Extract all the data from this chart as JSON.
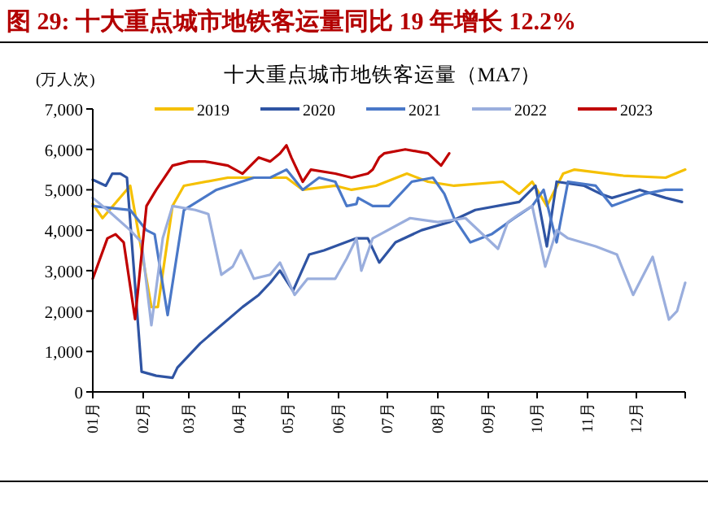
{
  "chart_data": {
    "type": "line",
    "title": "图 29: 十大重点城市地铁客运量同比 19 年增长 12.2%",
    "subtitle": "十大重点城市地铁客运量（MA7）",
    "ylabel": "(万人次)",
    "xlim": [
      "--01-01",
      "--12-31"
    ],
    "xticks": [
      {
        "value": "--01-01",
        "label": "01月"
      },
      {
        "value": "--02-01",
        "label": "02月"
      },
      {
        "value": "--03-01",
        "label": "03月"
      },
      {
        "value": "--04-01",
        "label": "04月"
      },
      {
        "value": "--05-01",
        "label": "05月"
      },
      {
        "value": "--06-01",
        "label": "06月"
      },
      {
        "value": "--07-01",
        "label": "07月"
      },
      {
        "value": "--08-01",
        "label": "08月"
      },
      {
        "value": "--09-01",
        "label": "09月"
      },
      {
        "value": "--10-01",
        "label": "10月"
      },
      {
        "value": "--11-01",
        "label": "11月"
      },
      {
        "value": "--12-01",
        "label": "12月"
      }
    ],
    "ylim": [
      0,
      7000
    ],
    "yticks": [
      {
        "value": 0,
        "label": "0"
      },
      {
        "value": 1000,
        "label": "1,000"
      },
      {
        "value": 2000,
        "label": "2,000"
      },
      {
        "value": 3000,
        "label": "3,000"
      },
      {
        "value": 4000,
        "label": "4,000"
      },
      {
        "value": 5000,
        "label": "5,000"
      },
      {
        "value": 6000,
        "label": "6,000"
      },
      {
        "value": 7000,
        "label": "7,000"
      }
    ],
    "legend": "top",
    "series": [
      {
        "name": "2019",
        "color": "#f5c000",
        "x": [
          "--01-01",
          "--01-07",
          "--01-24",
          "--02-06",
          "--02-10",
          "--02-19",
          "--02-26",
          "--03-25",
          "--04-30",
          "--05-10",
          "--05-30",
          "--06-09",
          "--06-24",
          "--07-13",
          "--07-26",
          "--08-11",
          "--09-10",
          "--09-20",
          "--09-28",
          "--10-07",
          "--10-17",
          "--10-24",
          "--11-23",
          "--12-19",
          "--12-31"
        ],
        "values": [
          4650,
          4300,
          5100,
          2100,
          2100,
          4600,
          5100,
          5300,
          5300,
          5000,
          5100,
          5000,
          5100,
          5400,
          5200,
          5100,
          5200,
          4900,
          5200,
          4600,
          5400,
          5500,
          5350,
          5300,
          5500
        ]
      },
      {
        "name": "2020",
        "color": "#2f54a3",
        "x": [
          "--01-01",
          "--01-09",
          "--01-13",
          "--01-18",
          "--01-22",
          "--01-31",
          "--02-09",
          "--02-19",
          "--02-22",
          "--03-08",
          "--04-03",
          "--04-13",
          "--04-20",
          "--04-26",
          "--05-04",
          "--05-14",
          "--05-23",
          "--06-12",
          "--06-19",
          "--06-26",
          "--07-06",
          "--07-22",
          "--08-08",
          "--08-24",
          "--09-20",
          "--09-30",
          "--10-07",
          "--10-13",
          "--10-30",
          "--11-09",
          "--11-16",
          "--12-03",
          "--12-19",
          "--12-29"
        ],
        "values": [
          5250,
          5100,
          5400,
          5400,
          5300,
          500,
          400,
          350,
          600,
          1200,
          2100,
          2400,
          2700,
          3000,
          2500,
          3400,
          3500,
          3800,
          3800,
          3200,
          3700,
          4000,
          4200,
          4500,
          4700,
          5100,
          3600,
          5200,
          5100,
          4900,
          4800,
          5000,
          4800,
          4700
        ]
      },
      {
        "name": "2021",
        "color": "#4a78c8",
        "x": [
          "--01-01",
          "--01-24",
          "--02-03",
          "--02-08",
          "--02-16",
          "--02-26",
          "--03-18",
          "--04-10",
          "--04-20",
          "--04-30",
          "--05-10",
          "--05-20",
          "--05-30",
          "--06-06",
          "--06-12",
          "--06-13",
          "--06-22",
          "--07-02",
          "--07-16",
          "--07-29",
          "--08-05",
          "--08-11",
          "--08-21",
          "--09-03",
          "--09-17",
          "--09-28",
          "--10-05",
          "--10-13",
          "--10-20",
          "--11-06",
          "--11-16",
          "--12-06",
          "--12-19",
          "--12-29"
        ],
        "values": [
          4600,
          4500,
          4000,
          3900,
          1900,
          4500,
          5000,
          5300,
          5300,
          5500,
          5000,
          5300,
          5200,
          4600,
          4650,
          4800,
          4600,
          4600,
          5200,
          5300,
          4900,
          4300,
          3700,
          3900,
          4300,
          4600,
          5000,
          3700,
          5200,
          5100,
          4600,
          4900,
          5000,
          5000
        ]
      },
      {
        "name": "2022",
        "color": "#9aaedd",
        "x": [
          "--01-01",
          "--01-10",
          "--01-24",
          "--01-31",
          "--02-06",
          "--02-13",
          "--02-19",
          "--03-05",
          "--03-13",
          "--03-21",
          "--03-28",
          "--04-02",
          "--04-10",
          "--04-20",
          "--04-26",
          "--05-05",
          "--05-13",
          "--05-30",
          "--06-06",
          "--06-12",
          "--06-15",
          "--06-22",
          "--07-15",
          "--08-01",
          "--08-18",
          "--09-07",
          "--09-13",
          "--09-20",
          "--09-28",
          "--10-06",
          "--10-13",
          "--10-20",
          "--11-06",
          "--11-19",
          "--11-29",
          "--12-11",
          "--12-21",
          "--12-26",
          "--12-31"
        ],
        "values": [
          4800,
          4500,
          4000,
          3700,
          1650,
          3800,
          4600,
          4500,
          4400,
          2900,
          3100,
          3500,
          2800,
          2900,
          3200,
          2400,
          2800,
          2800,
          3300,
          3800,
          3000,
          3800,
          4300,
          4200,
          4300,
          3540,
          4200,
          4400,
          4600,
          3100,
          4000,
          3800,
          3600,
          3400,
          2400,
          3340,
          1790,
          2000,
          2700
        ]
      },
      {
        "name": "2023",
        "color": "#c00000",
        "x": [
          "--01-01",
          "--01-10",
          "--01-15",
          "--01-20",
          "--01-27",
          "--02-03",
          "--02-09",
          "--02-19",
          "--03-01",
          "--03-11",
          "--03-25",
          "--04-03",
          "--04-13",
          "--04-20",
          "--04-26",
          "--04-30",
          "--05-03",
          "--05-10",
          "--05-15",
          "--05-30",
          "--06-09",
          "--06-19",
          "--06-22",
          "--06-26",
          "--06-29",
          "--07-12",
          "--07-26",
          "--08-03",
          "--08-08"
        ],
        "values": [
          2800,
          3800,
          3900,
          3700,
          1800,
          4600,
          5000,
          5600,
          5700,
          5700,
          5600,
          5400,
          5800,
          5700,
          5900,
          6100,
          5800,
          5200,
          5500,
          5400,
          5300,
          5400,
          5500,
          5800,
          5900,
          6000,
          5900,
          5600,
          5900
        ]
      }
    ]
  }
}
